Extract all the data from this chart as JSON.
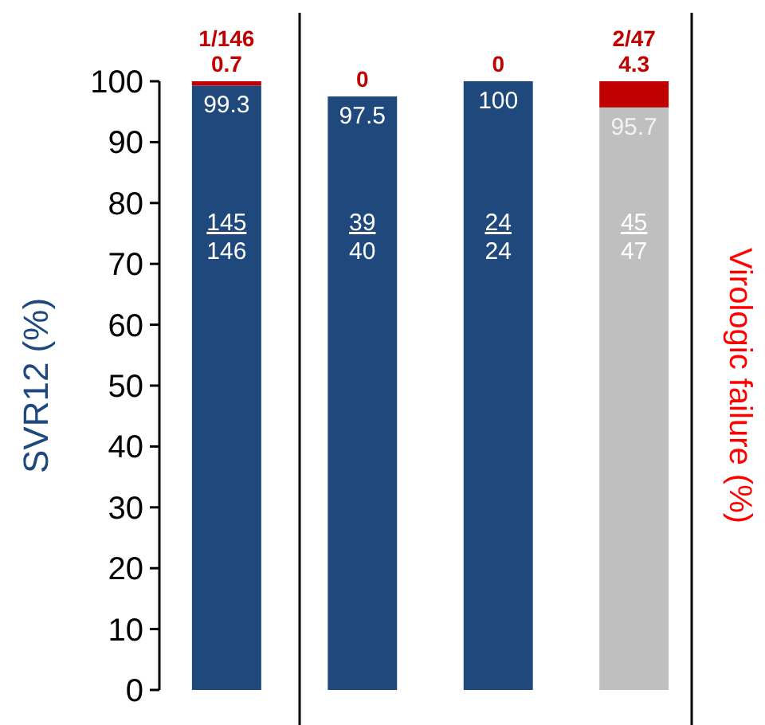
{
  "chart_data": {
    "type": "bar",
    "stacked": true,
    "ylabel": "SVR12 (%)",
    "y2label": "Virologic failure (%)",
    "categories": [
      null,
      null,
      null,
      null
    ],
    "ylim": [
      0,
      100
    ],
    "yticks": [
      0,
      10,
      20,
      30,
      40,
      50,
      60,
      70,
      80,
      90,
      100
    ],
    "grid": false,
    "series": [
      {
        "colors": [
          "#1f497d",
          "#1f497d",
          "#1f497d",
          "#bfbfbf"
        ],
        "values": [
          99.3,
          97.5,
          100,
          95.7
        ],
        "value_labels": [
          "99.3",
          "97.5",
          "100",
          "95.7"
        ]
      },
      {
        "color": "#c00000",
        "values": [
          0.7,
          0,
          0,
          4.3
        ],
        "value_labels": [
          "1/146\n0.7",
          "0",
          "0",
          "2/47\n4.3"
        ]
      }
    ],
    "annotations": [
      "145",
      "146",
      "39",
      "40",
      "24",
      "24",
      "45",
      "47"
    ]
  }
}
